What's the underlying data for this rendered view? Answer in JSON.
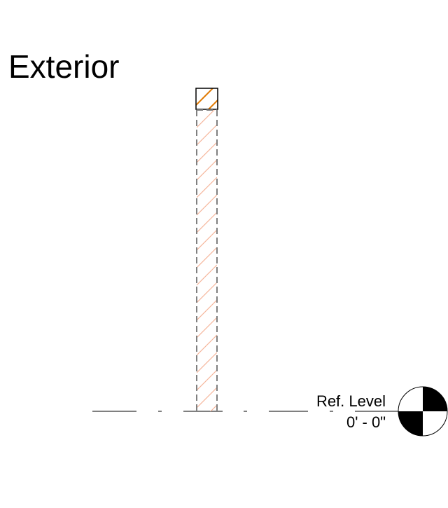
{
  "view": {
    "side_label": "Exterior"
  },
  "level": {
    "name": "Ref. Level",
    "elevation": "0' - 0\""
  },
  "colors": {
    "background": "#ffffff",
    "line": "#000000",
    "cut_pattern": "#e07800",
    "projection_pattern": "#f5b59a",
    "hidden_edge": "#808080"
  },
  "icons": {
    "level_head": "level-datum-symbol"
  }
}
